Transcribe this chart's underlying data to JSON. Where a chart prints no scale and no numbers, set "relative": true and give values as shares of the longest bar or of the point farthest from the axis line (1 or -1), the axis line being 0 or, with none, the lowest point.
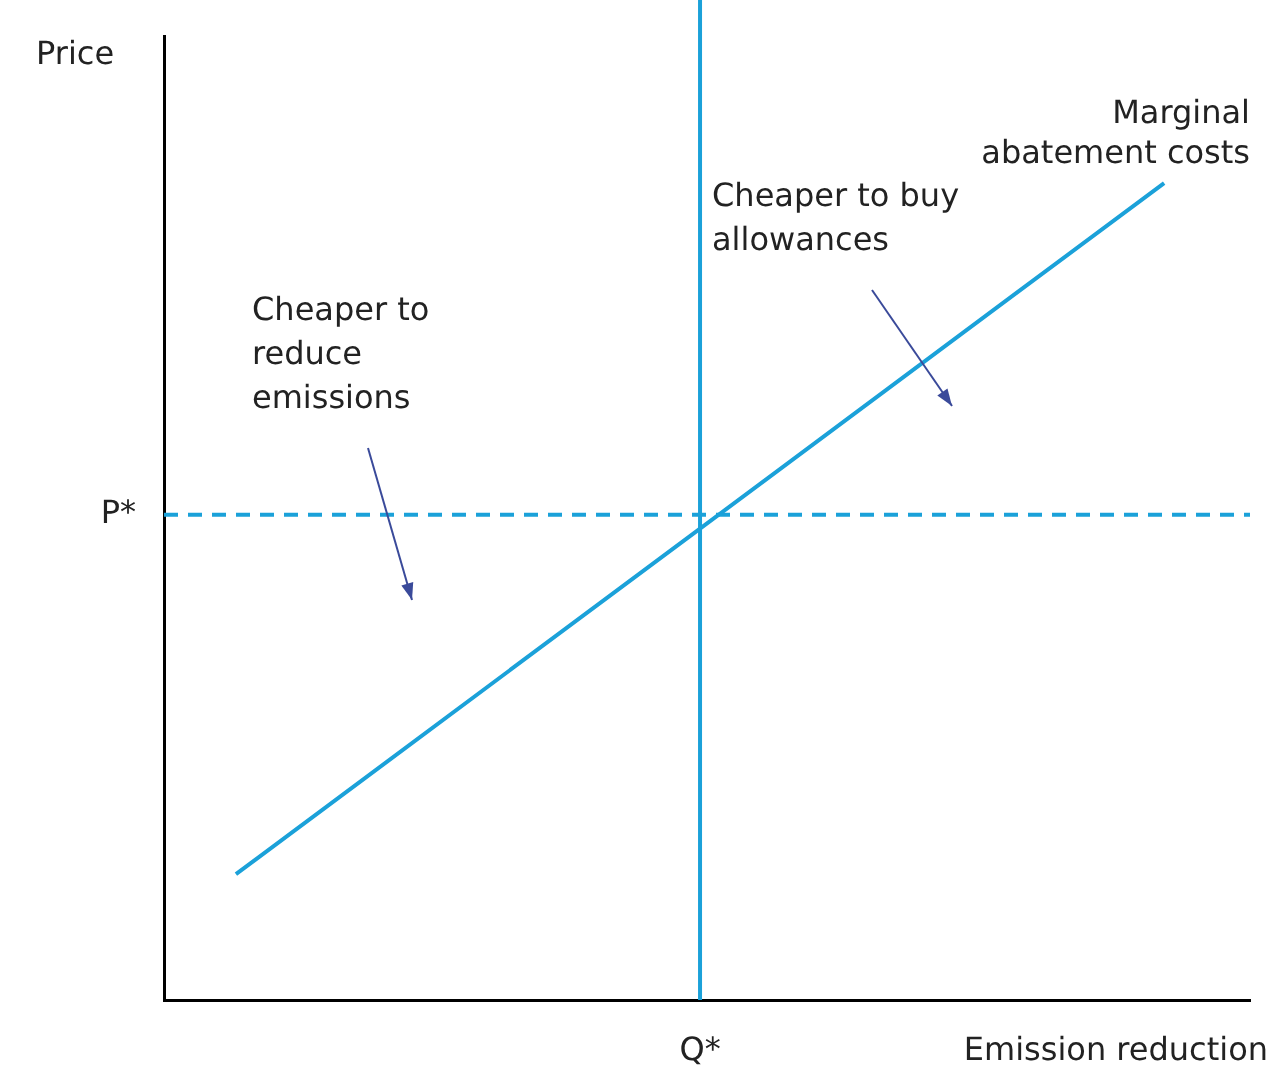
{
  "chart_data": {
    "type": "line",
    "relative": true,
    "xlabel": "Emission reduction",
    "ylabel": "Price",
    "categories": [
      null,
      null,
      null
    ],
    "series": [
      {
        "name": "Marginal abatement costs",
        "color": "#1ba1d9",
        "values": [
          0.154,
          0.577,
          1
        ]
      }
    ],
    "ref_lines": [
      {
        "axis": "y",
        "value": 0.594,
        "label": "P*",
        "color": "#1ba1d9",
        "line_style": "dashed"
      }
    ],
    "annotations": [
      "Cheaper to reduce emissions",
      "Cheaper to buy allowances",
      "Q*"
    ],
    "legend": false,
    "grid": false,
    "marker": "none",
    "line_style": "solid"
  }
}
